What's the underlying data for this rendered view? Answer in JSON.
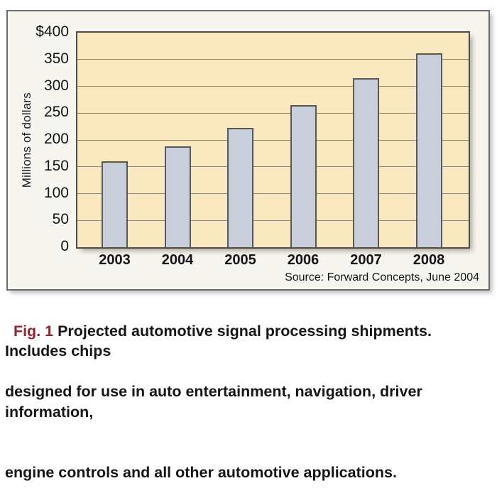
{
  "figure": {
    "y_axis_title": "Millions of dollars",
    "source_note": "Source: Forward Concepts, June 2004"
  },
  "caption": {
    "fig_label": "Fig. 1",
    "lines": [
      " Projected automotive signal processing shipments.  Includes chips",
      "designed for use in auto entertainment, navigation, driver information,",
      "engine controls and all other automotive applications."
    ]
  },
  "chart_data": {
    "type": "bar",
    "title": "",
    "categories": [
      "2003",
      "2004",
      "2005",
      "2006",
      "2007",
      "2008"
    ],
    "values": [
      160,
      188,
      222,
      265,
      315,
      362
    ],
    "xlabel": "",
    "ylabel": "Millions of dollars",
    "ylim": [
      0,
      400
    ],
    "ytick_step": 50,
    "ytick_labels": [
      "$400",
      "350",
      "300",
      "250",
      "200",
      "150",
      "100",
      "50",
      "0"
    ],
    "grid": true,
    "legend": null,
    "source": "Source: Forward Concepts, June 2004",
    "colors": {
      "plot_background": "#FAE8C1",
      "panel_background": "#F7F5EF",
      "bar_fill": "#C8CEDA",
      "bar_border": "#55585D",
      "gridline": "#8D8876",
      "panel_border": "#6F6D68",
      "plot_border": "#4F4D48",
      "caption_fig_red": "#8E2430",
      "text": "#141414"
    }
  }
}
